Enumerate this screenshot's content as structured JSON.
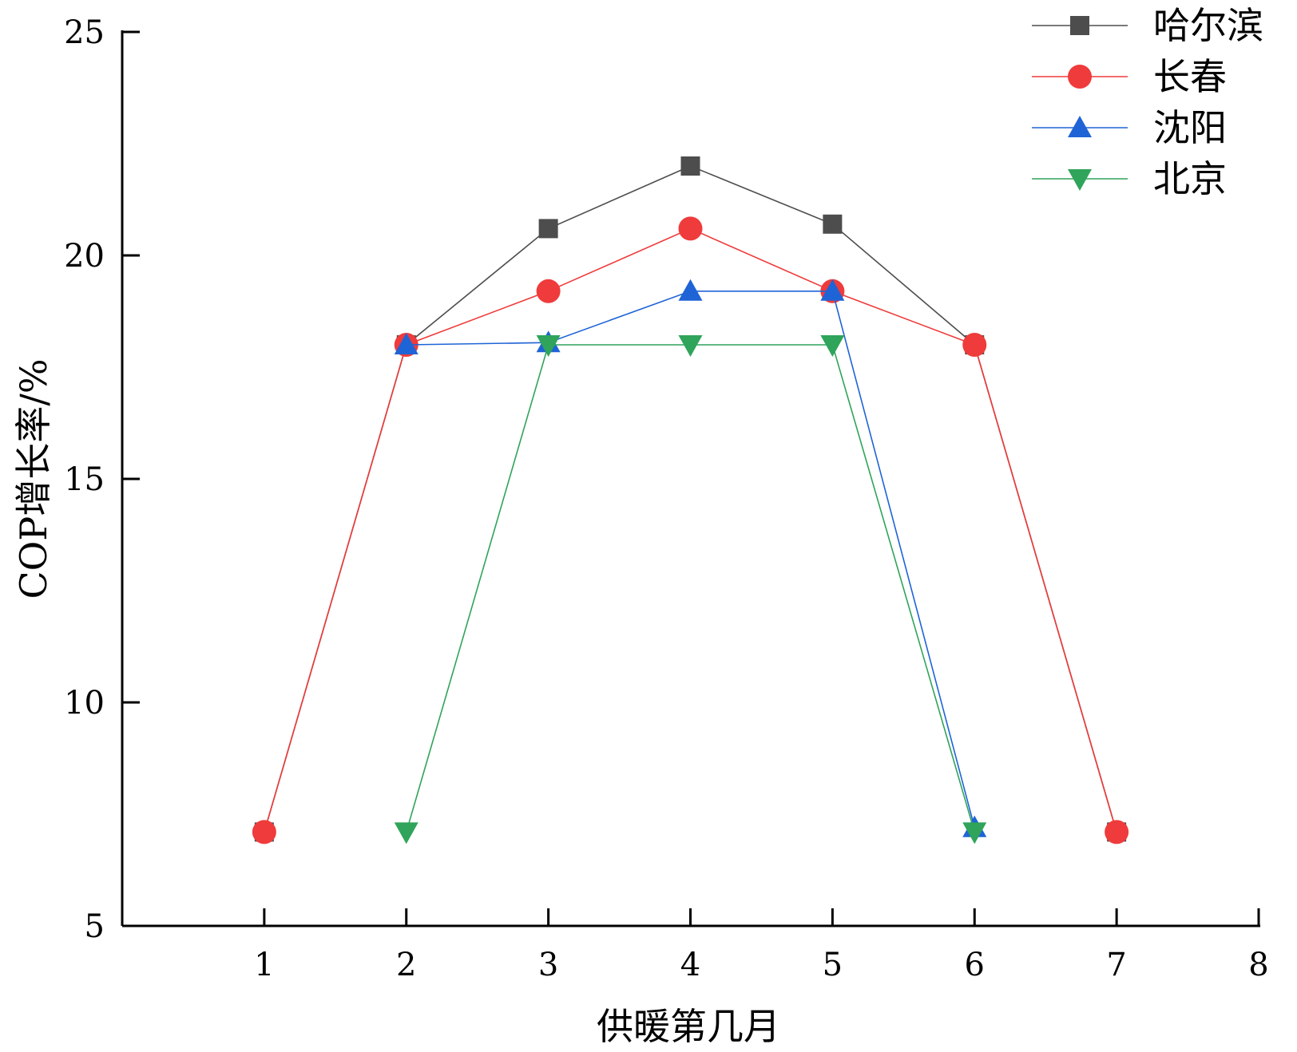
{
  "chart_data": {
    "type": "line",
    "xlabel": "供暖第几月",
    "ylabel": "COP增长率/%",
    "xlim": [
      0,
      8
    ],
    "ylim": [
      5,
      25
    ],
    "x_ticks": [
      1,
      2,
      3,
      4,
      5,
      6,
      7,
      8
    ],
    "y_ticks": [
      5,
      10,
      15,
      20,
      25
    ],
    "grid": false,
    "legend_position": "top-right",
    "series": [
      {
        "name": "哈尔滨",
        "color": "#4d4d4d",
        "marker": "square",
        "x": [
          1,
          2,
          3,
          4,
          5,
          6,
          7
        ],
        "y": [
          7.1,
          18.0,
          20.6,
          22.0,
          20.7,
          18.0,
          7.1
        ]
      },
      {
        "name": "长春",
        "color": "#ef3b3b",
        "marker": "circle",
        "x": [
          1,
          2,
          3,
          4,
          5,
          6,
          7
        ],
        "y": [
          7.1,
          18.0,
          19.2,
          20.6,
          19.2,
          18.0,
          7.1
        ]
      },
      {
        "name": "沈阳",
        "color": "#1f64d6",
        "marker": "triangle-up",
        "x": [
          2,
          3,
          4,
          5,
          6
        ],
        "y": [
          18.0,
          18.05,
          19.2,
          19.2,
          7.2
        ]
      },
      {
        "name": "北京",
        "color": "#2fa45a",
        "marker": "triangle-down",
        "x": [
          2,
          3,
          4,
          5,
          6
        ],
        "y": [
          7.1,
          18.0,
          18.0,
          18.0,
          7.1
        ]
      }
    ]
  }
}
